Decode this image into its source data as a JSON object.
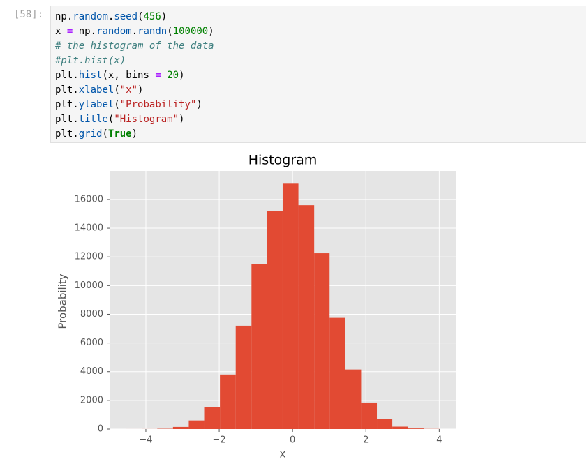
{
  "cell": {
    "prompt": "[58]:",
    "lines": [
      "np.random.seed(456)",
      "x = np.random.randn(100000)",
      "# the histogram of the data",
      "#plt.hist(x)",
      "plt.hist(x, bins = 20)",
      "plt.xlabel(\"x\")",
      "plt.ylabel(\"Probability\")",
      "plt.title(\"Histogram\")",
      "plt.grid(True)"
    ]
  },
  "chart_data": {
    "type": "histogram",
    "title": "Histogram",
    "x_label": "x",
    "y_label": "Probability",
    "bins": [
      -4.54,
      -4.11,
      -3.69,
      -3.26,
      -2.83,
      -2.41,
      -1.98,
      -1.55,
      -1.12,
      -0.7,
      -0.27,
      0.16,
      0.59,
      1.01,
      1.44,
      1.87,
      2.3,
      2.72,
      3.15,
      3.58,
      4.01
    ],
    "values": [
      1,
      4,
      20,
      150,
      600,
      1550,
      3800,
      7200,
      11500,
      15200,
      17100,
      15600,
      12250,
      7750,
      4150,
      1850,
      700,
      170,
      40,
      10
    ],
    "color": "#e24a33",
    "xlim": [
      -4.97,
      4.45
    ],
    "xticks": [
      {
        "value": -4,
        "label": "−4"
      },
      {
        "value": -2,
        "label": "−2"
      },
      0,
      2,
      4
    ],
    "ylim": [
      0,
      17990
    ],
    "yticks": [
      0,
      2000,
      4000,
      6000,
      8000,
      10000,
      12000,
      14000,
      16000
    ],
    "grid": true
  }
}
